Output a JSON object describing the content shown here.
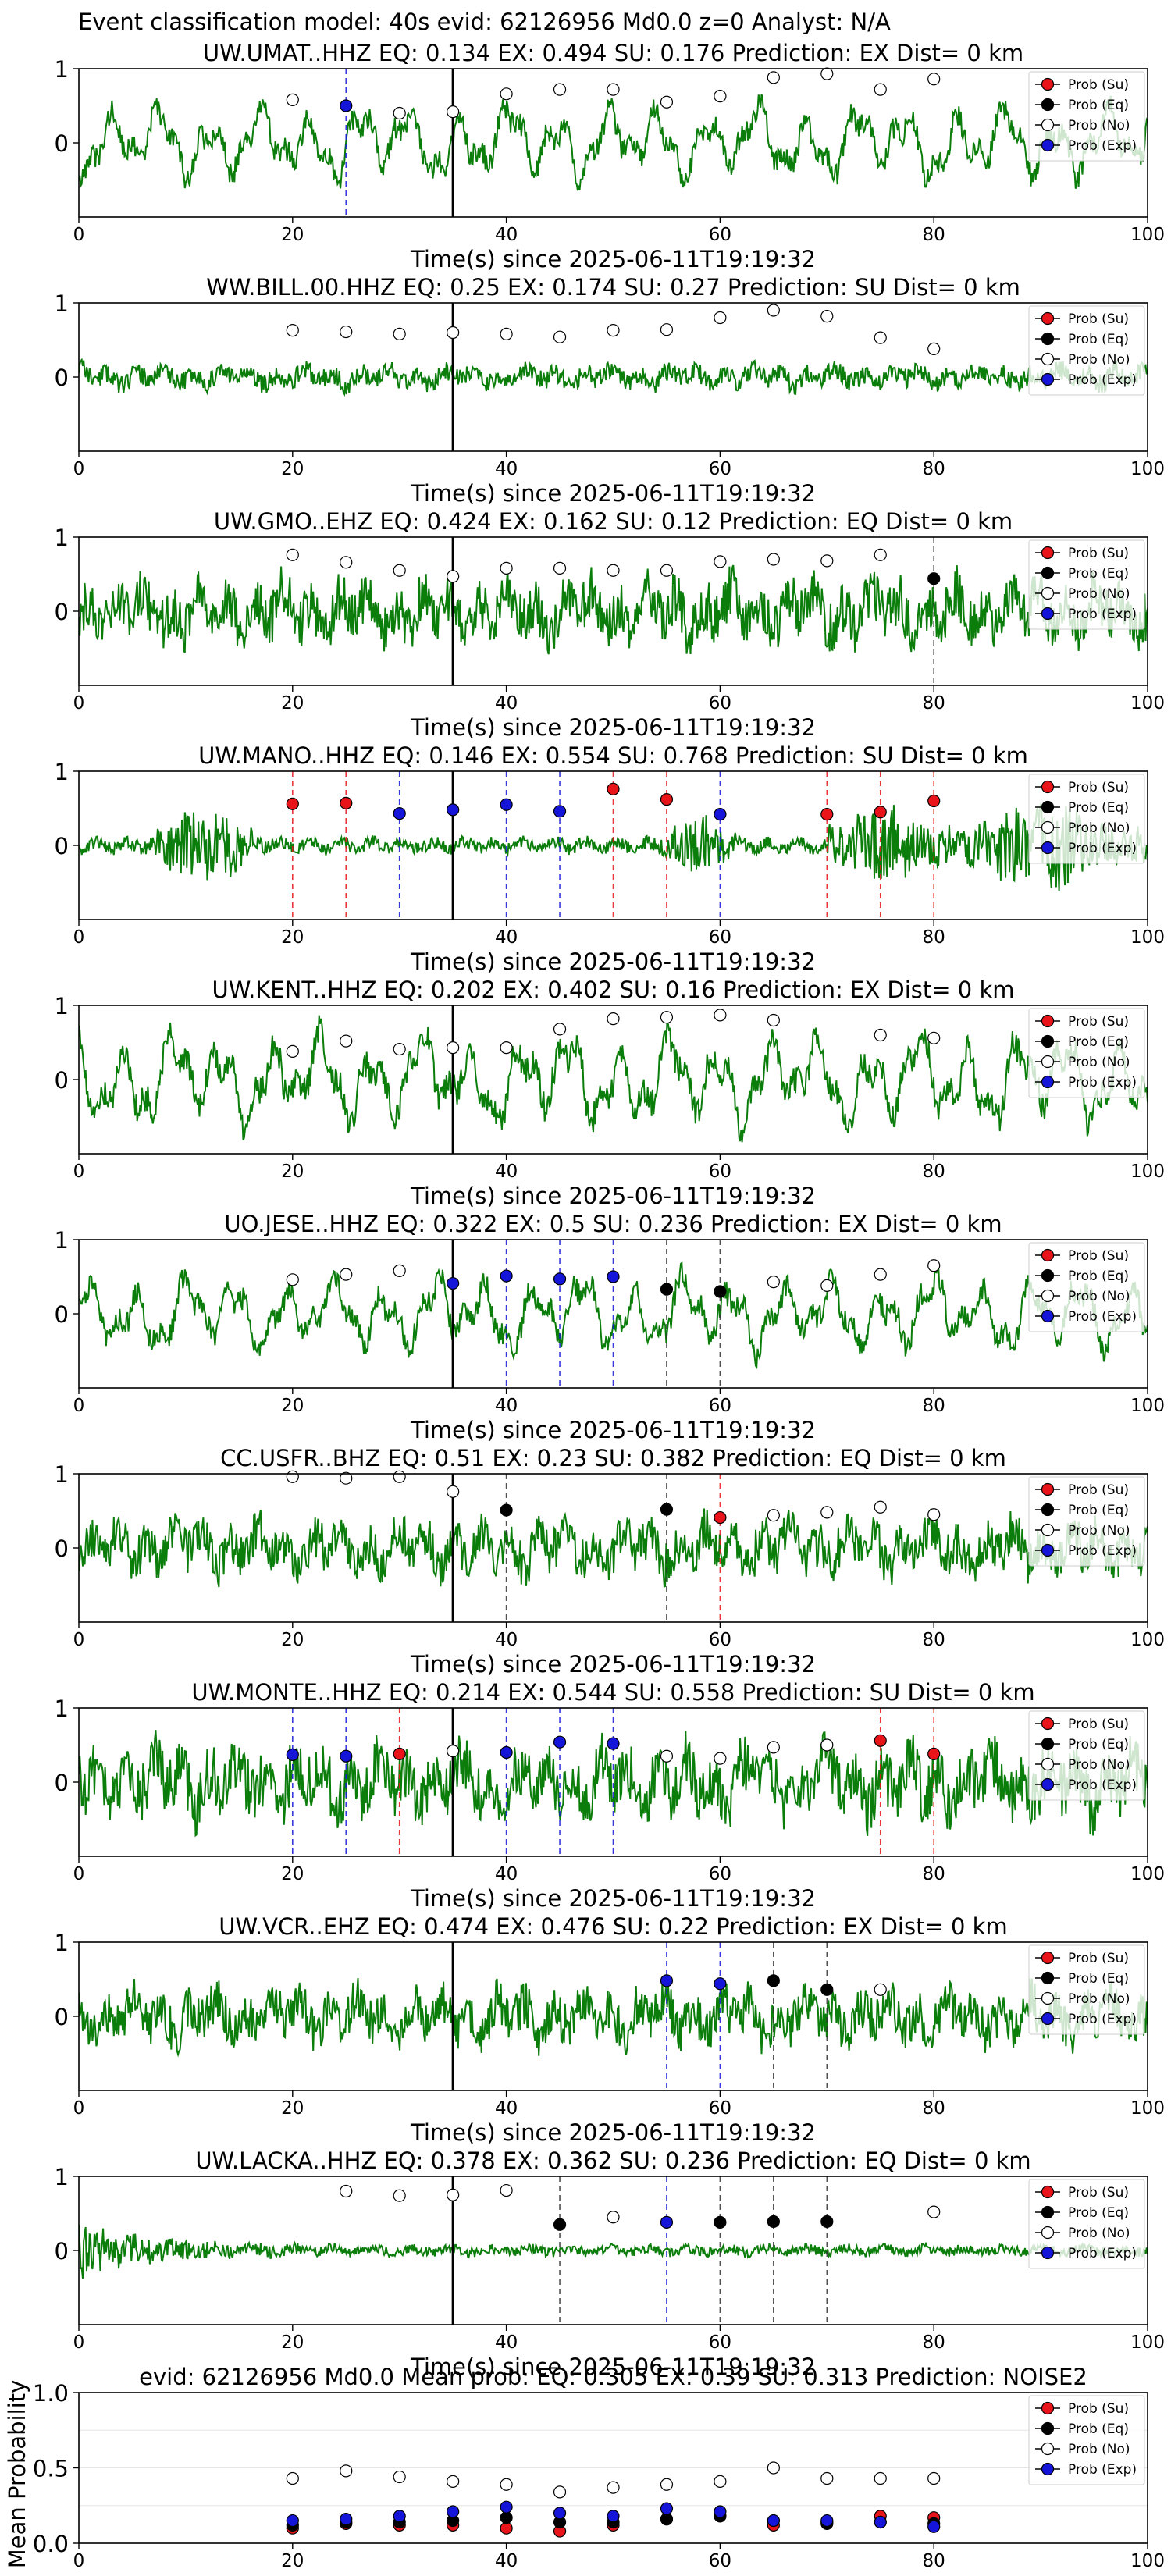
{
  "figure": {
    "suptitle": "Event classification model: 40s evid: 62126956 Md0.0 z=0 Analyst: N/A",
    "xlabel": "Time(s) since 2025-06-11T19:19:32",
    "xticks": [
      0,
      20,
      40,
      60,
      80,
      100
    ],
    "legend": [
      "Prob (Su)",
      "Prob (Eq)",
      "Prob (No)",
      "Prob (Exp)"
    ],
    "colors": {
      "su": "#e8141a",
      "eq": "#000000",
      "no": "#ffffff",
      "exp": "#1515d9",
      "trace": "#0a7d0a"
    }
  },
  "chart_data": [
    {
      "type": "scatter",
      "title": "UW.UMAT..HHZ   EQ: 0.134  EX: 0.494  SU: 0.176   Prediction: EX    Dist= 0 km",
      "xlabel": "Time(s) since 2025-06-11T19:19:32",
      "xlim": [
        0,
        100
      ],
      "ylim": [
        -1,
        1
      ],
      "yticks": [
        0,
        1
      ],
      "event_line": 35,
      "trace": {
        "amp": 0.45,
        "style": "wave",
        "seed": 3
      },
      "points": [
        {
          "x": 20,
          "y": 0.58,
          "c": "no"
        },
        {
          "x": 25,
          "y": 0.5,
          "c": "exp",
          "line": true
        },
        {
          "x": 30,
          "y": 0.4,
          "c": "no"
        },
        {
          "x": 35,
          "y": 0.42,
          "c": "no"
        },
        {
          "x": 40,
          "y": 0.66,
          "c": "no"
        },
        {
          "x": 45,
          "y": 0.72,
          "c": "no"
        },
        {
          "x": 50,
          "y": 0.72,
          "c": "no"
        },
        {
          "x": 55,
          "y": 0.55,
          "c": "no"
        },
        {
          "x": 60,
          "y": 0.63,
          "c": "no"
        },
        {
          "x": 65,
          "y": 0.88,
          "c": "no"
        },
        {
          "x": 70,
          "y": 0.93,
          "c": "no"
        },
        {
          "x": 75,
          "y": 0.72,
          "c": "no"
        },
        {
          "x": 80,
          "y": 0.86,
          "c": "no"
        }
      ]
    },
    {
      "type": "scatter",
      "title": "WW.BILL.00.HHZ   EQ: 0.25  EX: 0.174  SU: 0.27   Prediction: SU    Dist= 0 km",
      "xlabel": "Time(s) since 2025-06-11T19:19:32",
      "xlim": [
        0,
        100
      ],
      "ylim": [
        -1,
        1
      ],
      "yticks": [
        0,
        1
      ],
      "event_line": 35,
      "trace": {
        "amp": 0.13,
        "style": "noise",
        "seed": 11
      },
      "points": [
        {
          "x": 20,
          "y": 0.63,
          "c": "no"
        },
        {
          "x": 25,
          "y": 0.61,
          "c": "no"
        },
        {
          "x": 30,
          "y": 0.58,
          "c": "no"
        },
        {
          "x": 35,
          "y": 0.6,
          "c": "no"
        },
        {
          "x": 40,
          "y": 0.58,
          "c": "no"
        },
        {
          "x": 45,
          "y": 0.54,
          "c": "no"
        },
        {
          "x": 50,
          "y": 0.63,
          "c": "no"
        },
        {
          "x": 55,
          "y": 0.64,
          "c": "no"
        },
        {
          "x": 60,
          "y": 0.8,
          "c": "no"
        },
        {
          "x": 65,
          "y": 0.9,
          "c": "no"
        },
        {
          "x": 70,
          "y": 0.82,
          "c": "no"
        },
        {
          "x": 75,
          "y": 0.53,
          "c": "no"
        },
        {
          "x": 80,
          "y": 0.38,
          "c": "no"
        }
      ]
    },
    {
      "type": "scatter",
      "title": "UW.GMO..EHZ   EQ: 0.424  EX: 0.162  SU: 0.12   Prediction: EQ    Dist= 0 km",
      "xlabel": "Time(s) since 2025-06-11T19:19:32",
      "xlim": [
        0,
        100
      ],
      "ylim": [
        -1,
        1
      ],
      "yticks": [
        0,
        1
      ],
      "event_line": 35,
      "trace": {
        "amp": 0.35,
        "style": "noise",
        "seed": 21
      },
      "points": [
        {
          "x": 20,
          "y": 0.76,
          "c": "no"
        },
        {
          "x": 25,
          "y": 0.66,
          "c": "no"
        },
        {
          "x": 30,
          "y": 0.55,
          "c": "no"
        },
        {
          "x": 35,
          "y": 0.47,
          "c": "no"
        },
        {
          "x": 40,
          "y": 0.58,
          "c": "no"
        },
        {
          "x": 45,
          "y": 0.58,
          "c": "no"
        },
        {
          "x": 50,
          "y": 0.55,
          "c": "no"
        },
        {
          "x": 55,
          "y": 0.55,
          "c": "no"
        },
        {
          "x": 60,
          "y": 0.67,
          "c": "no"
        },
        {
          "x": 65,
          "y": 0.7,
          "c": "no"
        },
        {
          "x": 70,
          "y": 0.68,
          "c": "no"
        },
        {
          "x": 75,
          "y": 0.76,
          "c": "no"
        },
        {
          "x": 80,
          "y": 0.44,
          "c": "eq",
          "line": true
        }
      ]
    },
    {
      "type": "scatter",
      "title": "UW.MANO..HHZ   EQ: 0.146  EX: 0.554  SU: 0.768   Prediction: SU    Dist= 0 km",
      "xlabel": "Time(s) since 2025-06-11T19:19:32",
      "xlim": [
        0,
        100
      ],
      "ylim": [
        -1,
        1
      ],
      "yticks": [
        0,
        1
      ],
      "event_line": 35,
      "trace": {
        "amp": 0.2,
        "style": "bursty",
        "seed": 31
      },
      "points": [
        {
          "x": 20,
          "y": 0.56,
          "c": "su",
          "line": true
        },
        {
          "x": 25,
          "y": 0.57,
          "c": "su",
          "line": true
        },
        {
          "x": 30,
          "y": 0.43,
          "c": "exp",
          "line": true
        },
        {
          "x": 35,
          "y": 0.48,
          "c": "exp"
        },
        {
          "x": 40,
          "y": 0.55,
          "c": "exp",
          "line": true
        },
        {
          "x": 45,
          "y": 0.46,
          "c": "exp",
          "line": true
        },
        {
          "x": 50,
          "y": 0.76,
          "c": "su",
          "line": true
        },
        {
          "x": 55,
          "y": 0.62,
          "c": "su",
          "line": true
        },
        {
          "x": 60,
          "y": 0.42,
          "c": "exp",
          "line": true
        },
        {
          "x": 70,
          "y": 0.42,
          "c": "su",
          "line": true
        },
        {
          "x": 75,
          "y": 0.45,
          "c": "su",
          "line": true
        },
        {
          "x": 80,
          "y": 0.6,
          "c": "su",
          "line": true
        }
      ]
    },
    {
      "type": "scatter",
      "title": "UW.KENT..HHZ   EQ: 0.202  EX: 0.402  SU: 0.16   Prediction: EX    Dist= 0 km",
      "xlabel": "Time(s) since 2025-06-11T19:19:32",
      "xlim": [
        0,
        100
      ],
      "ylim": [
        -1,
        1
      ],
      "yticks": [
        0,
        1
      ],
      "event_line": 35,
      "trace": {
        "amp": 0.55,
        "style": "wave",
        "seed": 41
      },
      "points": [
        {
          "x": 20,
          "y": 0.38,
          "c": "no"
        },
        {
          "x": 25,
          "y": 0.52,
          "c": "no"
        },
        {
          "x": 30,
          "y": 0.41,
          "c": "no"
        },
        {
          "x": 35,
          "y": 0.43,
          "c": "no"
        },
        {
          "x": 40,
          "y": 0.43,
          "c": "no"
        },
        {
          "x": 45,
          "y": 0.68,
          "c": "no"
        },
        {
          "x": 50,
          "y": 0.82,
          "c": "no"
        },
        {
          "x": 55,
          "y": 0.84,
          "c": "no"
        },
        {
          "x": 60,
          "y": 0.87,
          "c": "no"
        },
        {
          "x": 65,
          "y": 0.8,
          "c": "no"
        },
        {
          "x": 75,
          "y": 0.6,
          "c": "no"
        },
        {
          "x": 80,
          "y": 0.56,
          "c": "no"
        }
      ]
    },
    {
      "type": "scatter",
      "title": "UO.JESE..HHZ   EQ: 0.322  EX: 0.5  SU: 0.236   Prediction: EX    Dist= 0 km",
      "xlabel": "Time(s) since 2025-06-11T19:19:32",
      "xlim": [
        0,
        100
      ],
      "ylim": [
        -1,
        1
      ],
      "yticks": [
        0,
        1
      ],
      "event_line": 35,
      "trace": {
        "amp": 0.45,
        "style": "wave",
        "seed": 51
      },
      "points": [
        {
          "x": 20,
          "y": 0.46,
          "c": "no"
        },
        {
          "x": 25,
          "y": 0.53,
          "c": "no"
        },
        {
          "x": 30,
          "y": 0.58,
          "c": "no"
        },
        {
          "x": 35,
          "y": 0.41,
          "c": "exp"
        },
        {
          "x": 40,
          "y": 0.51,
          "c": "exp",
          "line": true
        },
        {
          "x": 45,
          "y": 0.47,
          "c": "exp",
          "line": true
        },
        {
          "x": 50,
          "y": 0.5,
          "c": "exp",
          "line": true
        },
        {
          "x": 55,
          "y": 0.33,
          "c": "eq",
          "line": true
        },
        {
          "x": 60,
          "y": 0.3,
          "c": "eq",
          "line": true
        },
        {
          "x": 65,
          "y": 0.43,
          "c": "no"
        },
        {
          "x": 70,
          "y": 0.38,
          "c": "no"
        },
        {
          "x": 75,
          "y": 0.53,
          "c": "no"
        },
        {
          "x": 80,
          "y": 0.65,
          "c": "no"
        }
      ]
    },
    {
      "type": "scatter",
      "title": "CC.USFR..BHZ   EQ: 0.51  EX: 0.23  SU: 0.382   Prediction: EQ    Dist= 0 km",
      "xlabel": "Time(s) since 2025-06-11T19:19:32",
      "xlim": [
        0,
        100
      ],
      "ylim": [
        -1,
        1
      ],
      "yticks": [
        0,
        1
      ],
      "event_line": 35,
      "trace": {
        "amp": 0.3,
        "style": "noise",
        "seed": 61
      },
      "points": [
        {
          "x": 20,
          "y": 0.96,
          "c": "no"
        },
        {
          "x": 25,
          "y": 0.94,
          "c": "no"
        },
        {
          "x": 30,
          "y": 0.96,
          "c": "no"
        },
        {
          "x": 35,
          "y": 0.76,
          "c": "no"
        },
        {
          "x": 40,
          "y": 0.51,
          "c": "eq",
          "line": true
        },
        {
          "x": 55,
          "y": 0.52,
          "c": "eq",
          "line": true
        },
        {
          "x": 60,
          "y": 0.41,
          "c": "su",
          "line": true
        },
        {
          "x": 65,
          "y": 0.44,
          "c": "no"
        },
        {
          "x": 70,
          "y": 0.48,
          "c": "no"
        },
        {
          "x": 75,
          "y": 0.55,
          "c": "no"
        },
        {
          "x": 80,
          "y": 0.45,
          "c": "no"
        }
      ]
    },
    {
      "type": "scatter",
      "title": "UW.MONTE..HHZ   EQ: 0.214  EX: 0.544  SU: 0.558   Prediction: SU    Dist= 0 km",
      "xlabel": "Time(s) since 2025-06-11T19:19:32",
      "xlim": [
        0,
        100
      ],
      "ylim": [
        -1,
        1
      ],
      "yticks": [
        0,
        1
      ],
      "event_line": 35,
      "trace": {
        "amp": 0.4,
        "style": "noise",
        "seed": 71
      },
      "points": [
        {
          "x": 20,
          "y": 0.37,
          "c": "exp",
          "line": true
        },
        {
          "x": 25,
          "y": 0.35,
          "c": "exp",
          "line": true
        },
        {
          "x": 30,
          "y": 0.38,
          "c": "su",
          "line": true
        },
        {
          "x": 35,
          "y": 0.42,
          "c": "no"
        },
        {
          "x": 40,
          "y": 0.4,
          "c": "exp",
          "line": true
        },
        {
          "x": 45,
          "y": 0.54,
          "c": "exp",
          "line": true
        },
        {
          "x": 50,
          "y": 0.52,
          "c": "exp",
          "line": true
        },
        {
          "x": 55,
          "y": 0.35,
          "c": "no"
        },
        {
          "x": 60,
          "y": 0.32,
          "c": "no"
        },
        {
          "x": 65,
          "y": 0.47,
          "c": "no"
        },
        {
          "x": 70,
          "y": 0.5,
          "c": "no"
        },
        {
          "x": 75,
          "y": 0.56,
          "c": "su",
          "line": true
        },
        {
          "x": 80,
          "y": 0.38,
          "c": "su",
          "line": true
        }
      ]
    },
    {
      "type": "scatter",
      "title": "UW.VCR..EHZ   EQ: 0.474  EX: 0.476  SU: 0.22   Prediction: EX    Dist= 0 km",
      "xlabel": "Time(s) since 2025-06-11T19:19:32",
      "xlim": [
        0,
        100
      ],
      "ylim": [
        -1,
        1
      ],
      "yticks": [
        0,
        1
      ],
      "event_line": 35,
      "trace": {
        "amp": 0.3,
        "style": "noise",
        "seed": 81
      },
      "points": [
        {
          "x": 55,
          "y": 0.48,
          "c": "exp",
          "line": true
        },
        {
          "x": 60,
          "y": 0.44,
          "c": "exp",
          "line": true
        },
        {
          "x": 65,
          "y": 0.48,
          "c": "eq",
          "line": true
        },
        {
          "x": 70,
          "y": 0.36,
          "c": "eq",
          "line": true
        },
        {
          "x": 75,
          "y": 0.36,
          "c": "no"
        }
      ]
    },
    {
      "type": "scatter",
      "title": "UW.LACKA..HHZ   EQ: 0.378  EX: 0.362  SU: 0.236   Prediction: EQ    Dist= 0 km",
      "xlabel": "Time(s) since 2025-06-11T19:19:32",
      "xlim": [
        0,
        100
      ],
      "ylim": [
        -1,
        1
      ],
      "yticks": [
        0,
        1
      ],
      "event_line": 35,
      "trace": {
        "amp": 0.1,
        "style": "decay",
        "seed": 91
      },
      "points": [
        {
          "x": 25,
          "y": 0.8,
          "c": "no"
        },
        {
          "x": 30,
          "y": 0.74,
          "c": "no"
        },
        {
          "x": 35,
          "y": 0.75,
          "c": "no"
        },
        {
          "x": 40,
          "y": 0.81,
          "c": "no"
        },
        {
          "x": 45,
          "y": 0.35,
          "c": "eq",
          "line": true
        },
        {
          "x": 50,
          "y": 0.45,
          "c": "no"
        },
        {
          "x": 55,
          "y": 0.38,
          "c": "exp",
          "line": true
        },
        {
          "x": 60,
          "y": 0.38,
          "c": "eq",
          "line": true
        },
        {
          "x": 65,
          "y": 0.39,
          "c": "eq",
          "line": true
        },
        {
          "x": 70,
          "y": 0.39,
          "c": "eq",
          "line": true
        },
        {
          "x": 80,
          "y": 0.52,
          "c": "no"
        }
      ]
    },
    {
      "type": "scatter",
      "title": "evid: 62126956  Md0.0   Mean prob:   EQ: 0.305  EX: 0.39  SU: 0.313   Prediction: NOISE2",
      "xlabel": "",
      "ylabel": "Mean Probability",
      "xlim": [
        0,
        100
      ],
      "ylim": [
        0,
        1
      ],
      "yticks": [
        0.0,
        0.5,
        1.0
      ],
      "grid": true,
      "mean": true,
      "x": [
        20,
        25,
        30,
        35,
        40,
        45,
        50,
        55,
        60,
        65,
        70,
        75,
        80
      ],
      "series": [
        {
          "name": "Prob (Su)",
          "c": "su",
          "values": [
            0.1,
            0.13,
            0.12,
            0.12,
            0.1,
            0.08,
            0.12,
            0.16,
            0.18,
            0.12,
            0.14,
            0.18,
            0.17
          ]
        },
        {
          "name": "Prob (Eq)",
          "c": "eq",
          "values": [
            0.12,
            0.14,
            0.14,
            0.15,
            0.17,
            0.14,
            0.14,
            0.16,
            0.18,
            0.15,
            0.13,
            0.14,
            0.13
          ]
        },
        {
          "name": "Prob (No)",
          "c": "no",
          "values": [
            0.43,
            0.48,
            0.44,
            0.41,
            0.39,
            0.34,
            0.37,
            0.39,
            0.41,
            0.5,
            0.43,
            0.43,
            0.43
          ]
        },
        {
          "name": "Prob (Exp)",
          "c": "exp",
          "values": [
            0.15,
            0.16,
            0.18,
            0.21,
            0.24,
            0.2,
            0.18,
            0.23,
            0.21,
            0.15,
            0.15,
            0.14,
            0.11
          ]
        }
      ]
    }
  ]
}
